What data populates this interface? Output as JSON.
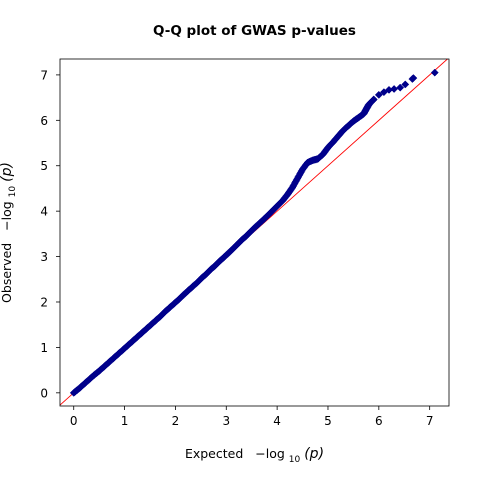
{
  "chart_data": {
    "type": "scatter",
    "title": "Q-Q plot of GWAS p-values",
    "xlabel": {
      "prefix": "Expected",
      "expr_main": "−log",
      "expr_sub": "10",
      "expr_arg": "(p)"
    },
    "ylabel": {
      "prefix": "Observed",
      "expr_main": "−log",
      "expr_sub": "10",
      "expr_arg": "(p)"
    },
    "xlim": [
      -0.27,
      7.38
    ],
    "ylim": [
      -0.29,
      7.35
    ],
    "xticks": [
      0,
      1,
      2,
      3,
      4,
      5,
      6,
      7
    ],
    "yticks": [
      0,
      1,
      2,
      3,
      4,
      5,
      6,
      7
    ],
    "grid": false,
    "series": [
      {
        "marker": "diamond",
        "color": "#00008b",
        "points": [
          [
            0.0,
            0.0
          ],
          [
            0.1,
            0.09
          ],
          [
            0.2,
            0.19
          ],
          [
            0.3,
            0.29
          ],
          [
            0.4,
            0.39
          ],
          [
            0.5,
            0.48
          ],
          [
            0.6,
            0.58
          ],
          [
            0.7,
            0.68
          ],
          [
            0.8,
            0.78
          ],
          [
            0.9,
            0.88
          ],
          [
            1.0,
            0.98
          ],
          [
            1.1,
            1.08
          ],
          [
            1.2,
            1.18
          ],
          [
            1.3,
            1.28
          ],
          [
            1.4,
            1.38
          ],
          [
            1.5,
            1.48
          ],
          [
            1.6,
            1.58
          ],
          [
            1.7,
            1.68
          ],
          [
            1.8,
            1.79
          ],
          [
            1.9,
            1.89
          ],
          [
            2.0,
            1.99
          ],
          [
            2.1,
            2.09
          ],
          [
            2.2,
            2.2
          ],
          [
            2.3,
            2.3
          ],
          [
            2.4,
            2.4
          ],
          [
            2.5,
            2.51
          ],
          [
            2.6,
            2.61
          ],
          [
            2.7,
            2.72
          ],
          [
            2.8,
            2.82
          ],
          [
            2.9,
            2.93
          ],
          [
            3.0,
            3.03
          ],
          [
            3.1,
            3.14
          ],
          [
            3.2,
            3.25
          ],
          [
            3.3,
            3.36
          ],
          [
            3.4,
            3.46
          ],
          [
            3.5,
            3.57
          ],
          [
            3.6,
            3.68
          ],
          [
            3.7,
            3.78
          ],
          [
            3.8,
            3.89
          ],
          [
            3.9,
            4.0
          ],
          [
            4.0,
            4.11
          ],
          [
            4.1,
            4.22
          ],
          [
            4.2,
            4.36
          ],
          [
            4.3,
            4.52
          ],
          [
            4.4,
            4.72
          ],
          [
            4.5,
            4.92
          ],
          [
            4.6,
            5.07
          ],
          [
            4.7,
            5.12
          ],
          [
            4.8,
            5.15
          ],
          [
            4.9,
            5.25
          ],
          [
            5.0,
            5.4
          ],
          [
            5.1,
            5.52
          ],
          [
            5.2,
            5.65
          ],
          [
            5.3,
            5.78
          ],
          [
            5.4,
            5.88
          ],
          [
            5.5,
            5.98
          ],
          [
            5.6,
            6.06
          ],
          [
            5.7,
            6.14
          ],
          [
            5.75,
            6.24
          ],
          [
            5.8,
            6.34
          ],
          [
            5.85,
            6.4
          ],
          [
            5.9,
            6.46
          ],
          [
            6.0,
            6.56
          ],
          [
            6.1,
            6.62
          ],
          [
            6.2,
            6.67
          ],
          [
            6.3,
            6.69
          ],
          [
            6.42,
            6.72
          ],
          [
            6.52,
            6.79
          ],
          [
            6.66,
            6.91
          ],
          [
            6.68,
            6.93
          ],
          [
            7.1,
            7.05
          ]
        ]
      }
    ],
    "reference_line": {
      "label": "",
      "slope": 1,
      "intercept": 0,
      "color": "#ff0000"
    }
  }
}
